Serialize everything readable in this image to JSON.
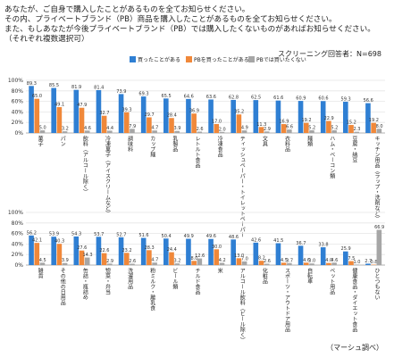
{
  "header": {
    "lines": [
      "あなたが、ご自身で購入したことがあるものを全てお知らせください。",
      "その内、プライベートブランド（PB）商品を購入したことがあるものを全てお知らせください。",
      "また、もしあなたが今後プライベートブランド（PB）では購入したくないものがあればお知らせください。",
      "（それぞれ複数選択可）"
    ],
    "respondents": "スクリーニング回答者：N=698",
    "source": "（マーシュ調べ）"
  },
  "colors": {
    "bought": "#2f7fd3",
    "pb": "#f0883a",
    "no": "#a6a6a6",
    "grid": "#e5e5e5"
  },
  "chart_data": [
    {
      "type": "bar",
      "ylim": [
        0,
        100
      ],
      "yticks": [
        "0",
        "20",
        "40",
        "60",
        "80",
        "100"
      ],
      "ytick_suffix": "%",
      "legend_position": "top",
      "series": [
        {
          "name": "買ったことがある",
          "values": [
            89.3,
            85.5,
            81.9,
            81.4,
            73.9,
            69.3,
            65.5,
            64.6,
            63.6,
            62.8,
            62.5,
            61.6,
            60.9,
            60.6,
            59.3,
            56.6
          ]
        },
        {
          "name": "PBを買ったことがある",
          "values": [
            65.0,
            49.1,
            47.9,
            32.7,
            39.3,
            29.7,
            28.4,
            36.9,
            17.0,
            35.2,
            11.3,
            16.9,
            19.2,
            22.9,
            15.2,
            19.2
          ]
        },
        {
          "name": "PBでは買いたくない",
          "values": [
            5.0,
            3.2,
            4.6,
            4.4,
            7.9,
            4.7,
            3.9,
            2.6,
            2.0,
            4.9,
            2.9,
            6.6,
            5.2,
            5.2,
            2.3,
            8.0
          ]
        }
      ],
      "categories": [
        "菓子",
        "パン",
        "飲料（アルコール除く）",
        "冷凍菓子（アイスクリームなど）",
        "調味料",
        "カップ麺",
        "乳製品",
        "レトルト食品",
        "冷凍食品",
        "ティッシュペーパー・トイレットペーパー",
        "文具",
        "衣料品",
        "麺類",
        "ハム・ベーコン類",
        "豆腐・納豆",
        "キッチン用品（ラップ・洗剤など）"
      ]
    },
    {
      "type": "bar",
      "ylim": [
        0,
        100
      ],
      "yticks": [
        "0",
        "20",
        "40",
        "60",
        "80",
        "100"
      ],
      "ytick_suffix": "%",
      "series": [
        {
          "name": "買ったことがある",
          "values": [
            56.2,
            53.9,
            54.3,
            53.7,
            52.7,
            51.6,
            50.4,
            49.9,
            49.6,
            48.6,
            42.6,
            41.5,
            36.7,
            33.8,
            25.9,
            2.7
          ]
        },
        {
          "name": "PBを買ったことがある",
          "values": [
            42.1,
            40.3,
            27.6,
            22.6,
            23.2,
            28.3,
            24.4,
            8.0,
            30.0,
            13.0,
            8.2,
            4.5,
            4.6,
            4.0,
            7.5,
            0.8
          ]
        },
        {
          "name": "PBでは買いたくない",
          "values": [
            4.5,
            3.9,
            14.3,
            2.9,
            2.6,
            4.7,
            3.2,
            12.6,
            4.2,
            7.0,
            2.6,
            3.7,
            3.0,
            4.6,
            1.0,
            66.9
          ]
        }
      ],
      "categories": [
        "雑貨",
        "その他の日用品",
        "缶詰・瓶詰め",
        "惣菜・弁当",
        "洗濯用品",
        "粉ミルク・離乳食",
        "ビール類",
        "チルド食品",
        "米",
        "アルコール飲料（ビール除く）",
        "化粧品",
        "スポーツ・アウトドア用品",
        "自転車",
        "ペット用品",
        "健康食品・ダイエット食品",
        "ひとつもない"
      ]
    }
  ]
}
